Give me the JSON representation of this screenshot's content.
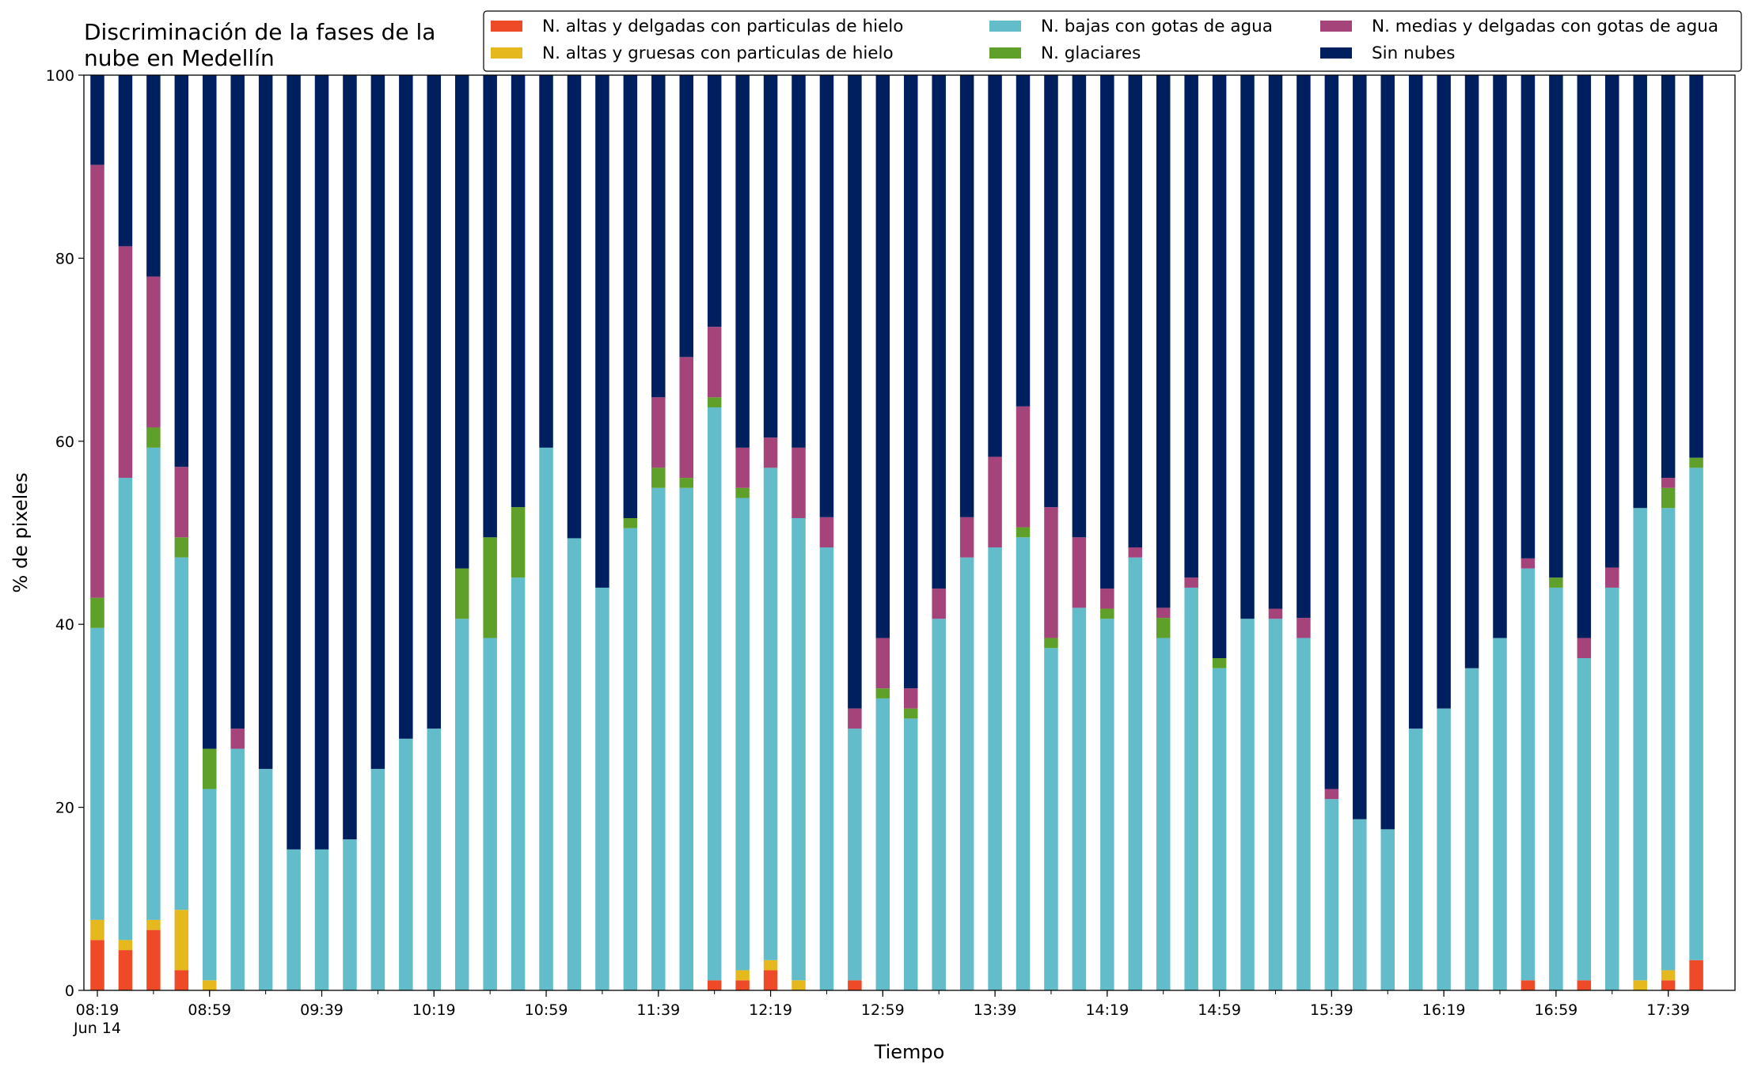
{
  "chart_data": {
    "type": "bar",
    "stacked": true,
    "title": "Discriminación de la fases de la\nnube en Medellín",
    "xlabel": "Tiempo",
    "ylabel": "% de pixeles",
    "ylim": [
      0,
      100
    ],
    "yticks": [
      0,
      20,
      40,
      60,
      80,
      100
    ],
    "grid": false,
    "legend_position": "top-right",
    "categories": [
      "08:19",
      "08:29",
      "08:39",
      "08:49",
      "08:59",
      "09:09",
      "09:19",
      "09:29",
      "09:39",
      "09:49",
      "09:59",
      "10:09",
      "10:19",
      "10:29",
      "10:39",
      "10:49",
      "10:59",
      "11:09",
      "11:19",
      "11:29",
      "11:39",
      "11:49",
      "11:59",
      "12:09",
      "12:19",
      "12:29",
      "12:39",
      "12:49",
      "12:59",
      "13:09",
      "13:19",
      "13:29",
      "13:39",
      "13:49",
      "13:59",
      "14:09",
      "14:19",
      "14:29",
      "14:39",
      "14:49",
      "14:59",
      "15:09",
      "15:19",
      "15:29",
      "15:39",
      "15:49",
      "15:59",
      "16:09",
      "16:19",
      "16:29",
      "16:39",
      "16:49",
      "16:59",
      "17:09",
      "17:19",
      "17:29",
      "17:39",
      "17:49"
    ],
    "x_tick_labels": [
      {
        "index": 0,
        "label": "08:19",
        "sublabel": "Jun 14"
      },
      {
        "index": 4,
        "label": "08:59"
      },
      {
        "index": 8,
        "label": "09:39"
      },
      {
        "index": 12,
        "label": "10:19"
      },
      {
        "index": 16,
        "label": "10:59"
      },
      {
        "index": 20,
        "label": "11:39"
      },
      {
        "index": 24,
        "label": "12:19"
      },
      {
        "index": 28,
        "label": "12:59"
      },
      {
        "index": 32,
        "label": "13:39"
      },
      {
        "index": 36,
        "label": "14:19"
      },
      {
        "index": 40,
        "label": "14:59"
      },
      {
        "index": 44,
        "label": "15:39"
      },
      {
        "index": 48,
        "label": "16:19"
      },
      {
        "index": 52,
        "label": "16:59"
      },
      {
        "index": 56,
        "label": "17:39"
      }
    ],
    "series": [
      {
        "name": "N. altas y delgadas con particulas de hielo",
        "color": "#ee4a28",
        "values": [
          5.5,
          4.4,
          6.6,
          2.2,
          0,
          0,
          0,
          0,
          0,
          0,
          0,
          0,
          0,
          0,
          0,
          0,
          0,
          0,
          0,
          0,
          0,
          0,
          1.1,
          1.1,
          2.2,
          0,
          0,
          1.1,
          0,
          0,
          0,
          0,
          0,
          0,
          0,
          0,
          0,
          0,
          0,
          0,
          0,
          0,
          0,
          0,
          0,
          0,
          0,
          0,
          0,
          0,
          0,
          1.1,
          0,
          1.1,
          0,
          0,
          1.1,
          3.3
        ]
      },
      {
        "name": "N. altas y gruesas con particulas de hielo",
        "color": "#e5b91d",
        "values": [
          2.2,
          1.1,
          1.1,
          6.6,
          1.1,
          0,
          0,
          0,
          0,
          0,
          0,
          0,
          0,
          0,
          0,
          0,
          0,
          0,
          0,
          0,
          0,
          0,
          0,
          1.1,
          1.1,
          1.1,
          0,
          0,
          0,
          0,
          0,
          0,
          0,
          0,
          0,
          0,
          0,
          0,
          0,
          0,
          0,
          0,
          0,
          0,
          0,
          0,
          0,
          0,
          0,
          0,
          0,
          0,
          0,
          0,
          0,
          1.1,
          1.1,
          0
        ]
      },
      {
        "name": "N. bajas con gotas de agua",
        "color": "#63bcc9",
        "values": [
          31.9,
          50.5,
          51.6,
          38.5,
          20.9,
          26.4,
          24.2,
          15.4,
          15.4,
          16.5,
          24.2,
          27.5,
          28.6,
          40.6,
          38.5,
          45.1,
          59.3,
          49.4,
          44,
          50.5,
          54.9,
          54.9,
          62.6,
          51.6,
          53.8,
          50.5,
          48.4,
          27.5,
          31.9,
          29.7,
          40.6,
          47.3,
          48.4,
          49.5,
          37.4,
          41.8,
          40.6,
          47.3,
          38.5,
          44,
          35.2,
          40.6,
          40.6,
          38.5,
          20.9,
          18.7,
          17.6,
          28.6,
          30.8,
          35.2,
          38.5,
          45,
          44,
          35.2,
          44,
          51.6,
          50.5,
          53.8
        ]
      },
      {
        "name": "N. glaciares",
        "color": "#5fa02b",
        "values": [
          3.3,
          0,
          2.2,
          2.2,
          4.4,
          0,
          0,
          0,
          0,
          0,
          0,
          0,
          0,
          5.5,
          11,
          7.7,
          0,
          0,
          0,
          1.1,
          2.2,
          1.1,
          1.1,
          1.1,
          0,
          0,
          0,
          0,
          1.1,
          1.1,
          0,
          0,
          0,
          1.1,
          1.1,
          0,
          1.1,
          0,
          2.2,
          0,
          1.1,
          0,
          0,
          0,
          0,
          0,
          0,
          0,
          0,
          0,
          0,
          0,
          1.1,
          0,
          0,
          0,
          2.2,
          1.1
        ]
      },
      {
        "name": "N. medias y delgadas con gotas de agua",
        "color": "#a5447a",
        "values": [
          47.3,
          25.3,
          16.5,
          7.7,
          0,
          2.2,
          0,
          0,
          0,
          0,
          0,
          0,
          0,
          0,
          0,
          0,
          0,
          0,
          0,
          0,
          7.7,
          13.2,
          7.7,
          4.4,
          3.3,
          7.7,
          3.3,
          2.2,
          5.5,
          2.2,
          3.3,
          4.4,
          9.9,
          13.2,
          14.3,
          7.7,
          2.2,
          1.1,
          1.1,
          1.1,
          0,
          0,
          1.1,
          2.2,
          1.1,
          0,
          0,
          0,
          0,
          0,
          0,
          1.1,
          0,
          2.2,
          2.2,
          0,
          1.1,
          0
        ]
      },
      {
        "name": "Sin nubes",
        "color": "#001f5f",
        "values": [
          9.8,
          18.7,
          22,
          42.8,
          73.6,
          71.4,
          75.8,
          84.6,
          84.6,
          83.5,
          75.8,
          72.5,
          71.4,
          53.9,
          50.5,
          47.2,
          40.7,
          50.6,
          56,
          48.4,
          35.2,
          30.8,
          27.5,
          40.7,
          39.6,
          40.7,
          48.3,
          69.2,
          61.5,
          67,
          56.1,
          48.3,
          41.7,
          36.2,
          47.2,
          50.5,
          56.1,
          51.6,
          58.2,
          54.9,
          63.7,
          59.4,
          58.3,
          59.3,
          78,
          81.3,
          82.4,
          71.4,
          69.2,
          64.8,
          61.5,
          52.8,
          54.9,
          61.5,
          53.8,
          47.3,
          44,
          41.8
        ]
      }
    ]
  }
}
